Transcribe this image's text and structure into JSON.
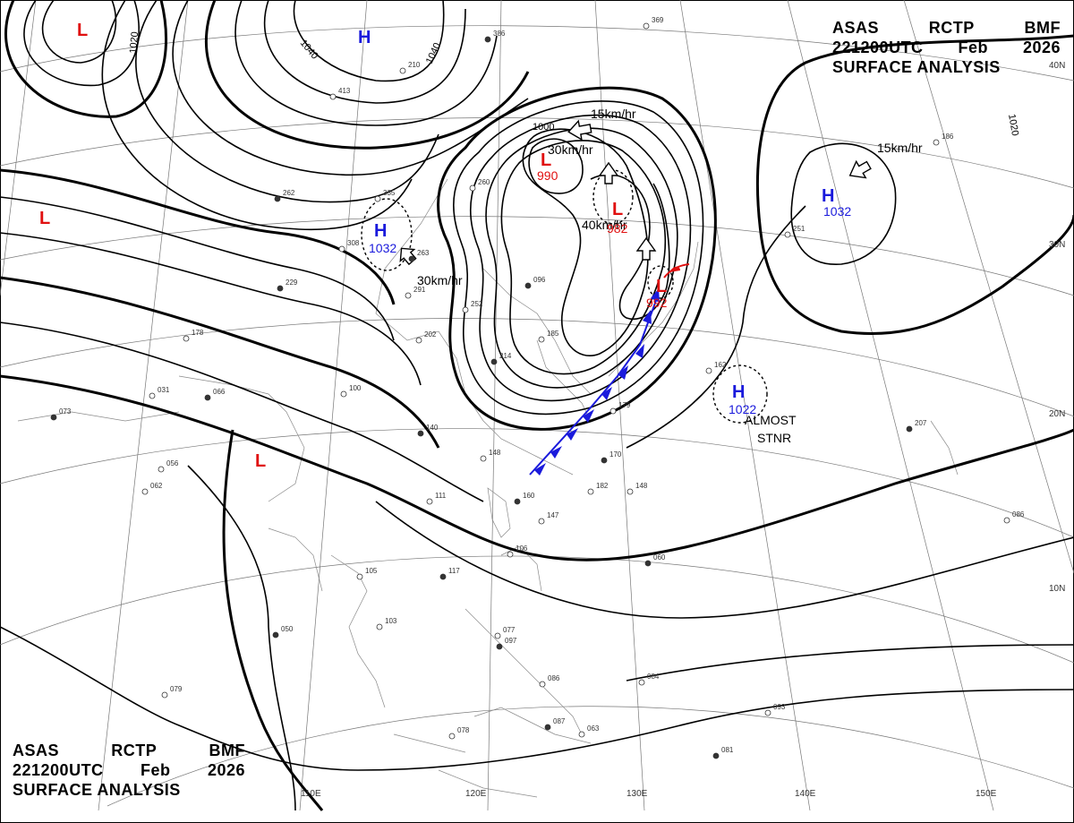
{
  "header": {
    "line1": [
      "ASAS",
      "RCTP",
      "BMF"
    ],
    "line2": [
      "221200UTC",
      "Feb",
      "2026"
    ],
    "line3": "SURFACE ANALYSIS"
  },
  "pressure_systems": [
    {
      "type": "L",
      "value": ""
    },
    {
      "type": "H",
      "value": ""
    },
    {
      "type": "L",
      "value": ""
    },
    {
      "type": "H",
      "value": "1032"
    },
    {
      "type": "L",
      "value": "990"
    },
    {
      "type": "L",
      "value": "982"
    },
    {
      "type": "L",
      "value": "992"
    },
    {
      "type": "H",
      "value": "1032"
    },
    {
      "type": "H",
      "value": "1022"
    },
    {
      "type": "L",
      "value": ""
    }
  ],
  "isobar_labels": [
    "1020",
    "1040",
    "1040",
    "1000",
    "1020"
  ],
  "motion_labels": [
    "15km/hr",
    "30km/hr",
    "40km/hr",
    "30km/hr",
    "15km/hr"
  ],
  "annotations": {
    "almost": "ALMOST",
    "stnr": "STNR"
  },
  "latitude_labels": [
    "40N",
    "30N",
    "20N",
    "10N"
  ],
  "longitude_labels": [
    "110E",
    "120E",
    "130E",
    "140E",
    "150E"
  ],
  "station_samples": [
    "073",
    "062",
    "056",
    "066",
    "031",
    "178",
    "229",
    "202",
    "100",
    "140",
    "148",
    "111",
    "160",
    "147",
    "106",
    "117",
    "105",
    "103",
    "050",
    "079",
    "077",
    "097",
    "086",
    "084",
    "087",
    "063",
    "078",
    "081",
    "093",
    "086",
    "060",
    "148",
    "182",
    "170",
    "179",
    "162",
    "207",
    "186",
    "251",
    "262",
    "335",
    "308",
    "263",
    "291",
    "252",
    "214",
    "210",
    "413",
    "386",
    "369",
    "260",
    "096",
    "185",
    "190"
  ],
  "colors": {
    "high": "#1a1adc",
    "low": "#e01010",
    "front": "#1a1adc",
    "front_warm": "#e01010"
  }
}
